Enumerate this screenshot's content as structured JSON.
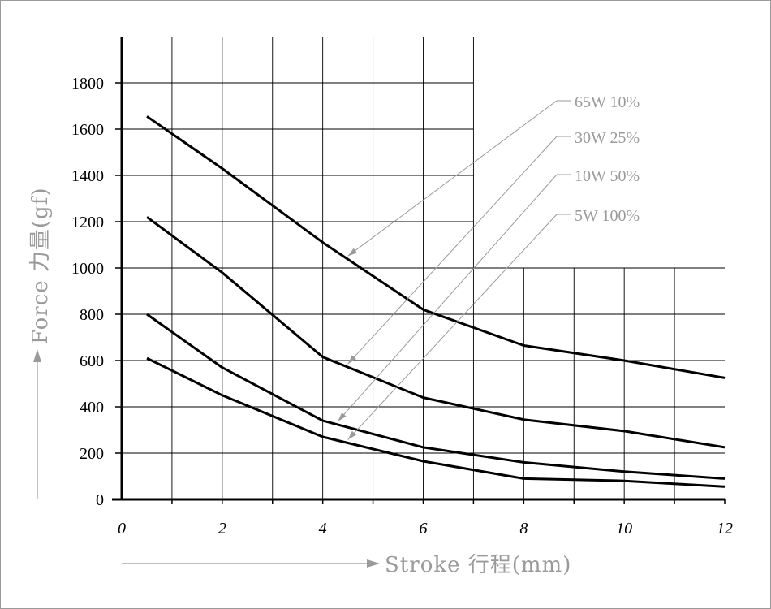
{
  "chart_data": {
    "type": "line",
    "xlabel": "Stroke 行程(mm)",
    "ylabel": "Force 力量(gf)",
    "xlim": [
      0,
      12
    ],
    "ylim": [
      0,
      2000
    ],
    "x_ticks": [
      "0",
      "2",
      "4",
      "6",
      "8",
      "10",
      "12"
    ],
    "y_ticks": [
      "0",
      "200",
      "400",
      "600",
      "800",
      "1000",
      "1200",
      "1400",
      "1600",
      "1800"
    ],
    "grid": true,
    "legend_position": "top-right",
    "series": [
      {
        "name": "65W 10%",
        "x": [
          0.5,
          2,
          4,
          6,
          8,
          10,
          12
        ],
        "y": [
          1655,
          1430,
          1110,
          820,
          665,
          600,
          525
        ]
      },
      {
        "name": "30W 25%",
        "x": [
          0.5,
          2,
          4,
          6,
          8,
          10,
          12
        ],
        "y": [
          1220,
          980,
          615,
          440,
          345,
          295,
          225
        ]
      },
      {
        "name": "10W 50%",
        "x": [
          0.5,
          2,
          4,
          6,
          8,
          10,
          12
        ],
        "y": [
          800,
          570,
          340,
          225,
          160,
          120,
          90
        ]
      },
      {
        "name": "5W 100%",
        "x": [
          0.5,
          2,
          4,
          6,
          8,
          10,
          12
        ],
        "y": [
          610,
          450,
          270,
          165,
          90,
          80,
          55
        ]
      }
    ]
  }
}
